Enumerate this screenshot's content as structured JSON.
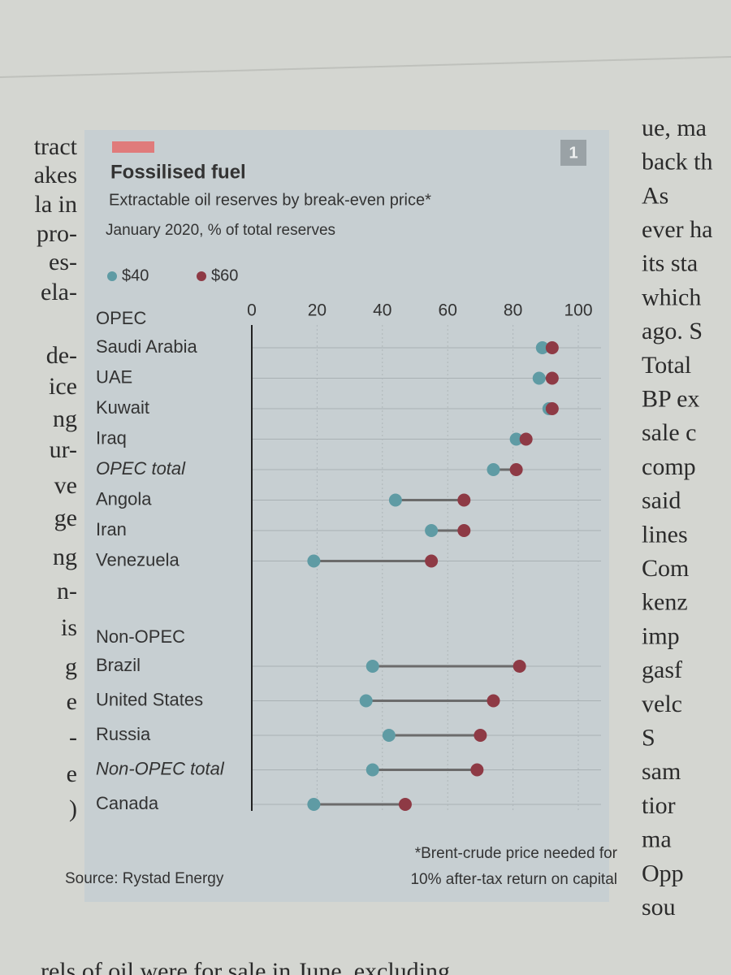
{
  "chart_data": {
    "type": "dumbbell",
    "chart_number": "1",
    "title": "Fossilised fuel",
    "subtitle": "Extractable oil reserves by break-even price*",
    "description": "January 2020, % of total reserves",
    "groups": [
      {
        "label": "OPEC",
        "categories": [
          "Saudi Arabia",
          "UAE",
          "Kuwait",
          "Iraq",
          "OPEC total",
          "Angola",
          "Iran",
          "Venezuela"
        ]
      },
      {
        "label": "Non-OPEC",
        "categories": [
          "Brazil",
          "United States",
          "Russia",
          "Non-OPEC total",
          "Canada"
        ]
      }
    ],
    "series": [
      {
        "name": "$40",
        "color": "#5f9ba4",
        "values": [
          89,
          88,
          91,
          81,
          74,
          44,
          55,
          19,
          37,
          35,
          42,
          37,
          19
        ]
      },
      {
        "name": "$60",
        "color": "#8e3a45",
        "values": [
          92,
          92,
          92,
          84,
          81,
          65,
          65,
          55,
          82,
          74,
          70,
          69,
          47
        ]
      }
    ],
    "xlim": [
      0,
      100
    ],
    "xticks": [
      0,
      20,
      40,
      60,
      80,
      100
    ],
    "grid": true,
    "source": "Source: Rystad Energy",
    "note": [
      "*Brent-crude price needed for",
      "10% after-tax return on capital"
    ]
  },
  "page": {
    "left_column": [
      "tract",
      "akes",
      "la in",
      "pro-",
      "es-",
      "ela-",
      "de-",
      "ice",
      "ng",
      "ur-",
      "ve",
      "ge",
      "ng",
      "n-",
      "is",
      "g",
      "e",
      "-",
      "e",
      ")"
    ],
    "right_column": [
      "ue, ma",
      "back th",
      "As",
      "ever ha",
      "its sta",
      "which",
      "ago. S",
      "Total",
      "BP ex",
      "sale c",
      "comp",
      "said",
      "lines",
      "Com",
      "kenz",
      "imp",
      "gasf",
      "velc",
      "S",
      "sam",
      "tior",
      "ma",
      "Opp",
      "sou"
    ],
    "bottom_line": "rels of oil were for sale in June, excluding"
  }
}
